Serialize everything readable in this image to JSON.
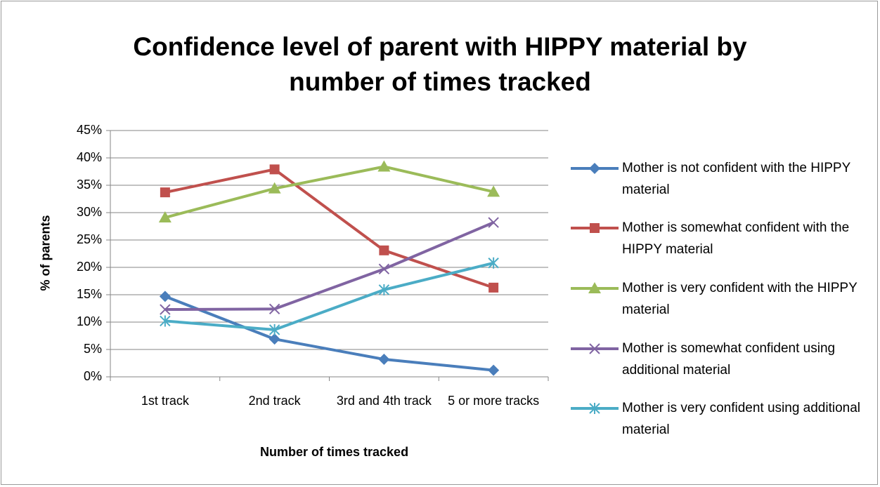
{
  "chart_data": {
    "type": "line",
    "title": "Confidence level of parent with HIPPY material by number of times tracked",
    "x_label": "Number of times tracked",
    "y_label": "% of parents",
    "categories": [
      "1st track",
      "2nd track",
      "3rd and 4th track",
      "5 or more tracks"
    ],
    "series": [
      {
        "name": "Mother is not confident with the HIPPY material",
        "color": "#4a7ebb",
        "marker": "diamond",
        "values": [
          14.7,
          6.9,
          3.2,
          1.2
        ]
      },
      {
        "name": "Mother is somewhat confident with the HIPPY material",
        "color": "#c0504d",
        "marker": "square",
        "values": [
          33.7,
          37.9,
          23.1,
          16.3
        ]
      },
      {
        "name": "Mother is very confident with the HIPPY material",
        "color": "#9bbb59",
        "marker": "triangle",
        "values": [
          29.1,
          34.4,
          38.4,
          33.8
        ]
      },
      {
        "name": "Mother is somewhat confident using additional material",
        "color": "#8064a2",
        "marker": "x",
        "values": [
          12.3,
          12.4,
          19.7,
          28.2
        ]
      },
      {
        "name": "Mother is very confident using additional material",
        "color": "#4bacc6",
        "marker": "asterisk",
        "values": [
          10.2,
          8.6,
          15.9,
          20.8
        ]
      }
    ],
    "ylim": [
      0,
      45
    ],
    "yticks": [
      {
        "value": 0,
        "label": "0%"
      },
      {
        "value": 5,
        "label": "5%"
      },
      {
        "value": 10,
        "label": "10%"
      },
      {
        "value": 15,
        "label": "15%"
      },
      {
        "value": 20,
        "label": "20%"
      },
      {
        "value": 25,
        "label": "25%"
      },
      {
        "value": 30,
        "label": "30%"
      },
      {
        "value": 35,
        "label": "35%"
      },
      {
        "value": 40,
        "label": "40%"
      },
      {
        "value": 45,
        "label": "45%"
      }
    ],
    "grid": true,
    "legend": "right"
  }
}
